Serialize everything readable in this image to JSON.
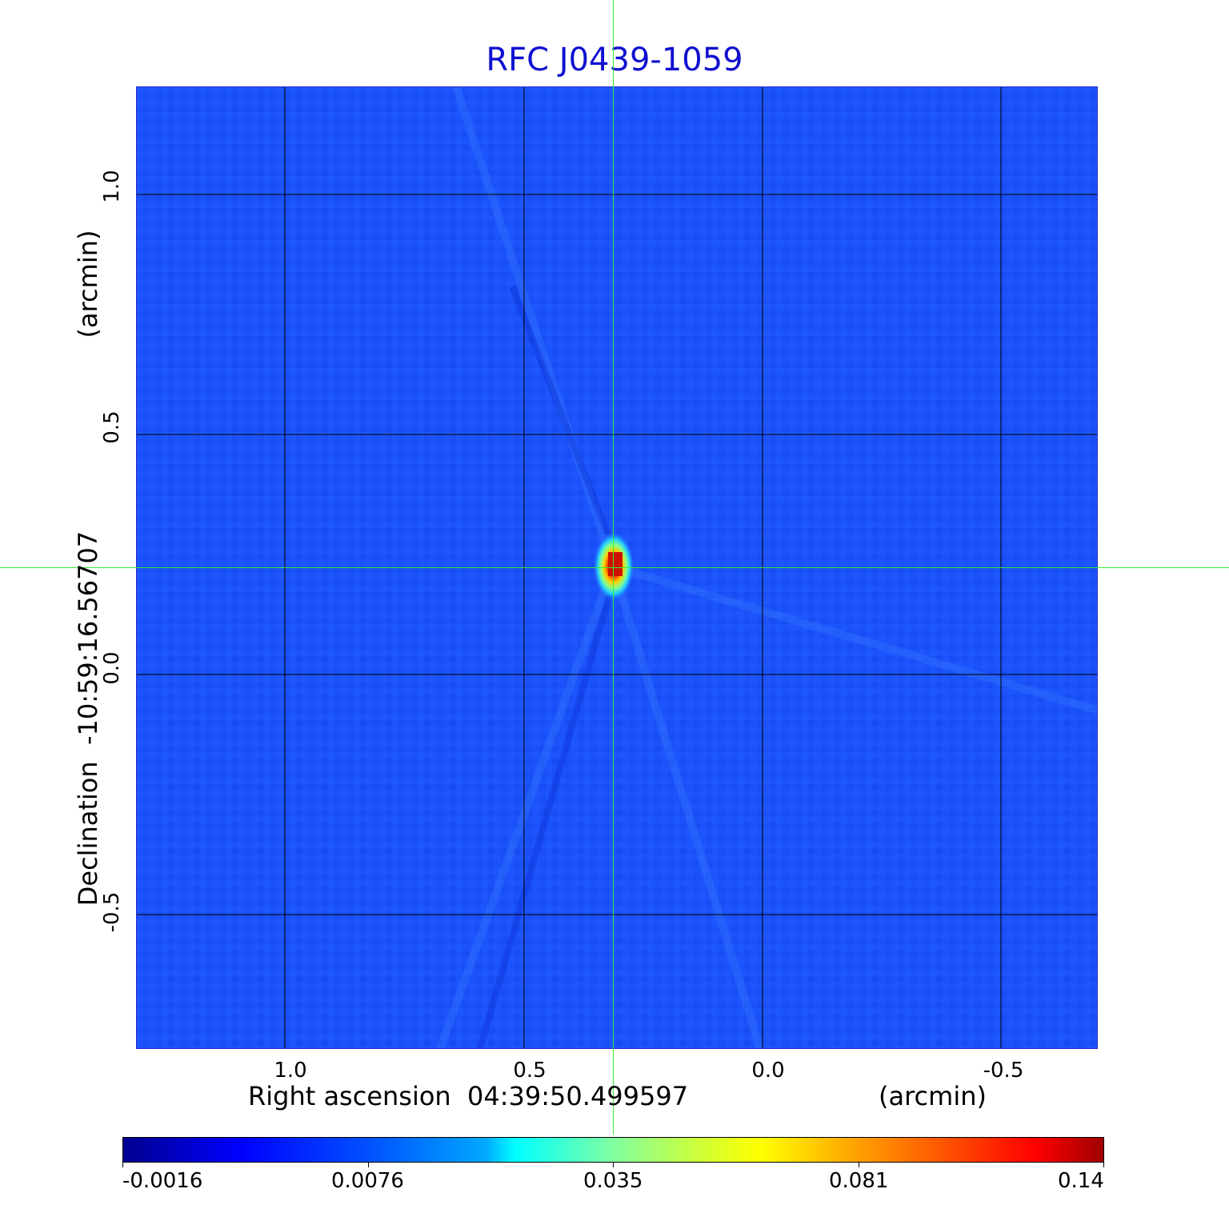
{
  "figure": {
    "title": "RFC J0439-1059",
    "xlabel": "Right ascension  04:39:50.499597",
    "xunit": "(arcmin)",
    "ylabel": "Declination  -10:59:16.56707",
    "yunit": "(arcmin)",
    "xticks": [
      "1.0",
      "0.5",
      "0.0",
      "-0.5"
    ],
    "yticks": [
      "1.0",
      "0.5",
      "0.0",
      "-0.5"
    ],
    "colorbar_ticks": [
      "-0.0016",
      "0.0076",
      "0.035",
      "0.081",
      "0.14"
    ],
    "colors": {
      "title": "#1010d0",
      "background_map": "#1a4fff",
      "grid": "#000000",
      "crosshair": "#33ee33"
    }
  }
}
